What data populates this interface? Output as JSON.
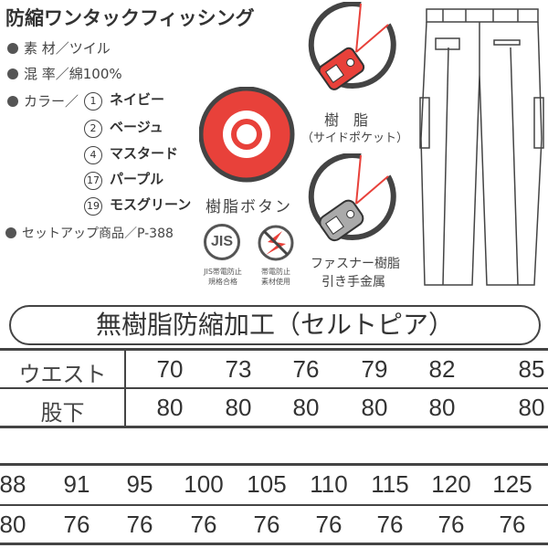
{
  "title": "防縮ワンタックフィッシング",
  "specs": {
    "material": "素 材／ツイル",
    "blend": "混 率／綿100%",
    "color_label": "カラー／",
    "setup": "セットアップ商品／P-388"
  },
  "colors": [
    {
      "num": "1",
      "name": "ネイビー"
    },
    {
      "num": "2",
      "name": "ベージュ"
    },
    {
      "num": "4",
      "name": "マスタード"
    },
    {
      "num": "17",
      "name": "パープル"
    },
    {
      "num": "19",
      "name": "モスグリーン"
    }
  ],
  "labels": {
    "button": "樹脂ボタン",
    "side_pocket_1": "樹　脂",
    "side_pocket_2": "（サイドポケット）",
    "fastener_1": "ファスナー樹脂",
    "fastener_2": "引き手金属",
    "jis_logo": "JIS",
    "jis_1": "JIS帯電防止",
    "jis_2": "規格合格",
    "antistatic_1": "帯電防止",
    "antistatic_2": "素材使用"
  },
  "banner": "無樹脂防縮加工（セルトピア）",
  "size_table": {
    "row_labels": [
      "ウエスト",
      "股下"
    ],
    "part1": {
      "waist": [
        "70",
        "73",
        "76",
        "79",
        "82",
        "85"
      ],
      "inseam": [
        "80",
        "80",
        "80",
        "80",
        "80",
        "80"
      ]
    },
    "part2": {
      "waist": [
        "88",
        "91",
        "95",
        "100",
        "105",
        "110",
        "115",
        "120",
        "125"
      ],
      "inseam": [
        "80",
        "76",
        "76",
        "76",
        "76",
        "76",
        "76",
        "76",
        "76"
      ]
    }
  },
  "accent_color": "#e8413a"
}
